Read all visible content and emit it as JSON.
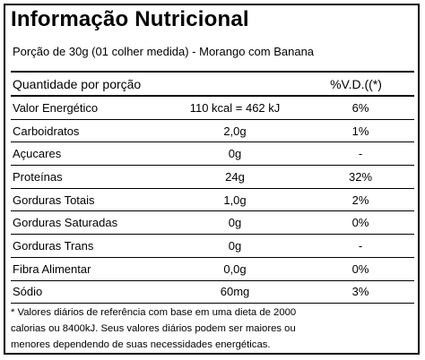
{
  "label": {
    "title": "Informação Nutricional",
    "subtitle": "Porção de 30g (01 colher medida) - Morango com Banana",
    "header": {
      "quantity": "Quantidade por porção",
      "vd": "%V.D.((*)"
    },
    "rows": [
      {
        "name": "Valor Energético",
        "amount": "110 kcal = 462 kJ",
        "vd": "6%"
      },
      {
        "name": "Carboidratos",
        "amount": "2,0g",
        "vd": "1%"
      },
      {
        "name": "Açucares",
        "amount": "0g",
        "vd": "-"
      },
      {
        "name": "Proteínas",
        "amount": "24g",
        "vd": "32%"
      },
      {
        "name": "Gorduras Totais",
        "amount": "1,0g",
        "vd": "2%"
      },
      {
        "name": "Gorduras Saturadas",
        "amount": "0g",
        "vd": "0%"
      },
      {
        "name": "Gorduras Trans",
        "amount": "0g",
        "vd": "-"
      },
      {
        "name": "Fibra Alimentar",
        "amount": "0,0g",
        "vd": "0%"
      },
      {
        "name": "Sódio",
        "amount": "60mg",
        "vd": "3%"
      }
    ],
    "footnote": [
      "* Valores diários de referência com base em uma dieta de 2000",
      "calorias ou 8400kJ. Seus valores diários podem ser maiores ou",
      "menores dependendo de suas necessidades energéticas."
    ]
  }
}
